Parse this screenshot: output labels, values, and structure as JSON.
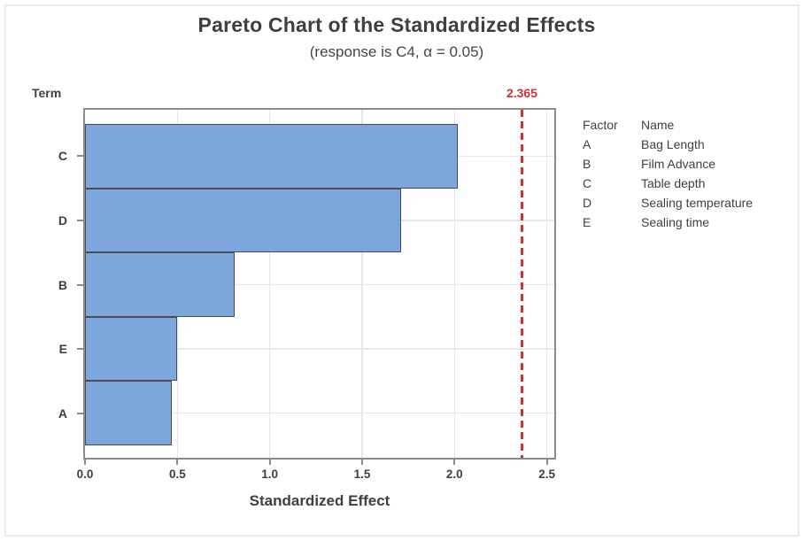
{
  "figure": {
    "background": "#ffffff",
    "frame_border_color": "#ebebeb"
  },
  "chart_data": {
    "type": "bar",
    "orientation": "horizontal",
    "title": "Pareto Chart of the Standardized Effects",
    "subtitle": "(response is C4, α = 0.05)",
    "xlabel": "Standardized Effect",
    "ylabel": "Term",
    "categories": [
      "C",
      "D",
      "B",
      "E",
      "A"
    ],
    "values": [
      2.02,
      1.71,
      0.81,
      0.5,
      0.47
    ],
    "xticks": [
      0,
      0.5,
      1.0,
      1.5,
      2.0,
      2.5
    ],
    "xtick_labels": [
      "0.0",
      "0.5",
      "1.0",
      "1.5",
      "2.0",
      "2.5"
    ],
    "xlim": [
      0,
      2.54
    ],
    "grid": true,
    "gridline_color": "#e7e7e7",
    "bar_fill_color": "#7da7dc",
    "bar_border_color": "#4d4d4d",
    "reference_line": {
      "value": 2.365,
      "label": "2.365",
      "color": "#cc3333",
      "style": "dashed"
    },
    "legend_position": "right"
  },
  "legend": {
    "header": {
      "factor": "Factor",
      "name": "Name"
    },
    "rows": [
      {
        "factor": "A",
        "name": "Bag Length"
      },
      {
        "factor": "B",
        "name": "Film Advance"
      },
      {
        "factor": "C",
        "name": "Table depth"
      },
      {
        "factor": "D",
        "name": "Sealing temperature"
      },
      {
        "factor": "E",
        "name": "Sealing time"
      }
    ]
  }
}
